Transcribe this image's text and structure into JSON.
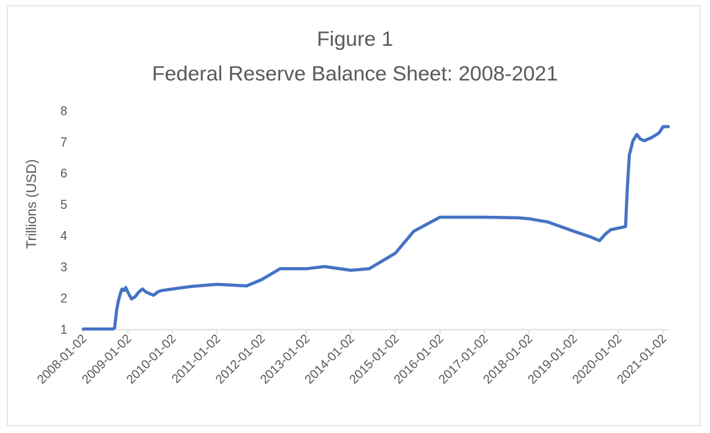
{
  "chart_data": {
    "type": "line",
    "title": "Figure 1",
    "subtitle": "Federal Reserve Balance Sheet: 2008-2021",
    "xlabel": "",
    "ylabel": "Trillions (USD)",
    "ylim": [
      1,
      8
    ],
    "yticks": [
      1,
      2,
      3,
      4,
      5,
      6,
      7,
      8
    ],
    "xticks": [
      "2008-01-02",
      "2009-01-02",
      "2010-01-02",
      "2011-01-02",
      "2012-01-02",
      "2013-01-02",
      "2014-01-02",
      "2015-01-02",
      "2016-01-02",
      "2017-01-02",
      "2018-01-02",
      "2019-01-02",
      "2020-01-02",
      "2021-01-02"
    ],
    "xlim": [
      "2008-01-02",
      "2021-02-15"
    ],
    "grid": false,
    "color": "#4472c4",
    "series": [
      {
        "x": [
          "2008-01-02",
          "2008-06-01",
          "2008-09-01",
          "2008-09-15",
          "2008-10-01",
          "2008-10-15",
          "2008-11-01",
          "2008-11-15",
          "2008-12-01",
          "2008-12-15",
          "2009-01-02",
          "2009-02-01",
          "2009-03-01",
          "2009-04-01",
          "2009-05-01",
          "2009-06-01",
          "2009-07-01",
          "2009-08-01",
          "2009-09-01",
          "2009-10-01",
          "2010-01-02",
          "2010-06-01",
          "2011-01-02",
          "2011-06-01",
          "2011-09-01",
          "2012-01-02",
          "2012-06-01",
          "2013-01-02",
          "2013-06-01",
          "2014-01-02",
          "2014-06-01",
          "2015-01-02",
          "2015-06-01",
          "2016-01-02",
          "2017-01-02",
          "2017-10-01",
          "2018-01-02",
          "2018-06-01",
          "2019-01-02",
          "2019-06-01",
          "2019-08-01",
          "2019-09-15",
          "2019-11-01",
          "2020-01-02",
          "2020-03-01",
          "2020-03-15",
          "2020-04-01",
          "2020-05-01",
          "2020-06-01",
          "2020-07-01",
          "2020-08-01",
          "2020-09-01",
          "2020-10-01",
          "2020-12-01",
          "2021-01-02",
          "2021-02-15"
        ],
        "y": [
          1.02,
          1.02,
          1.02,
          1.05,
          1.6,
          1.9,
          2.15,
          2.3,
          2.25,
          2.35,
          2.2,
          1.98,
          2.05,
          2.2,
          2.3,
          2.2,
          2.15,
          2.1,
          2.2,
          2.25,
          2.3,
          2.38,
          2.45,
          2.42,
          2.4,
          2.6,
          2.95,
          2.95,
          3.02,
          2.9,
          2.95,
          3.45,
          4.15,
          4.6,
          4.6,
          4.58,
          4.55,
          4.45,
          4.15,
          3.95,
          3.85,
          4.05,
          4.2,
          4.25,
          4.3,
          5.5,
          6.6,
          7.05,
          7.25,
          7.1,
          7.05,
          7.1,
          7.15,
          7.3,
          7.5,
          7.5
        ]
      }
    ]
  }
}
